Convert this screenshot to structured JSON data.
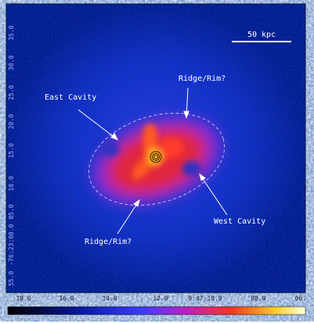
{
  "image": {
    "scale_bar": "50 kpc",
    "annotations": [
      "East Cavity",
      "Ridge/Rim?",
      "West Cavity",
      "Ridge/Rim?"
    ],
    "y_tick_labels": [
      "35.0",
      "30.0",
      "25.0",
      "20.0",
      "15.0",
      "10.0",
      "05.0",
      "-76:23:00.0",
      "55.0"
    ],
    "x_tick_labels": [
      "18.0",
      "16.0",
      "14.0",
      "12.0",
      "9:47:10.0",
      "08.0",
      "06."
    ]
  }
}
